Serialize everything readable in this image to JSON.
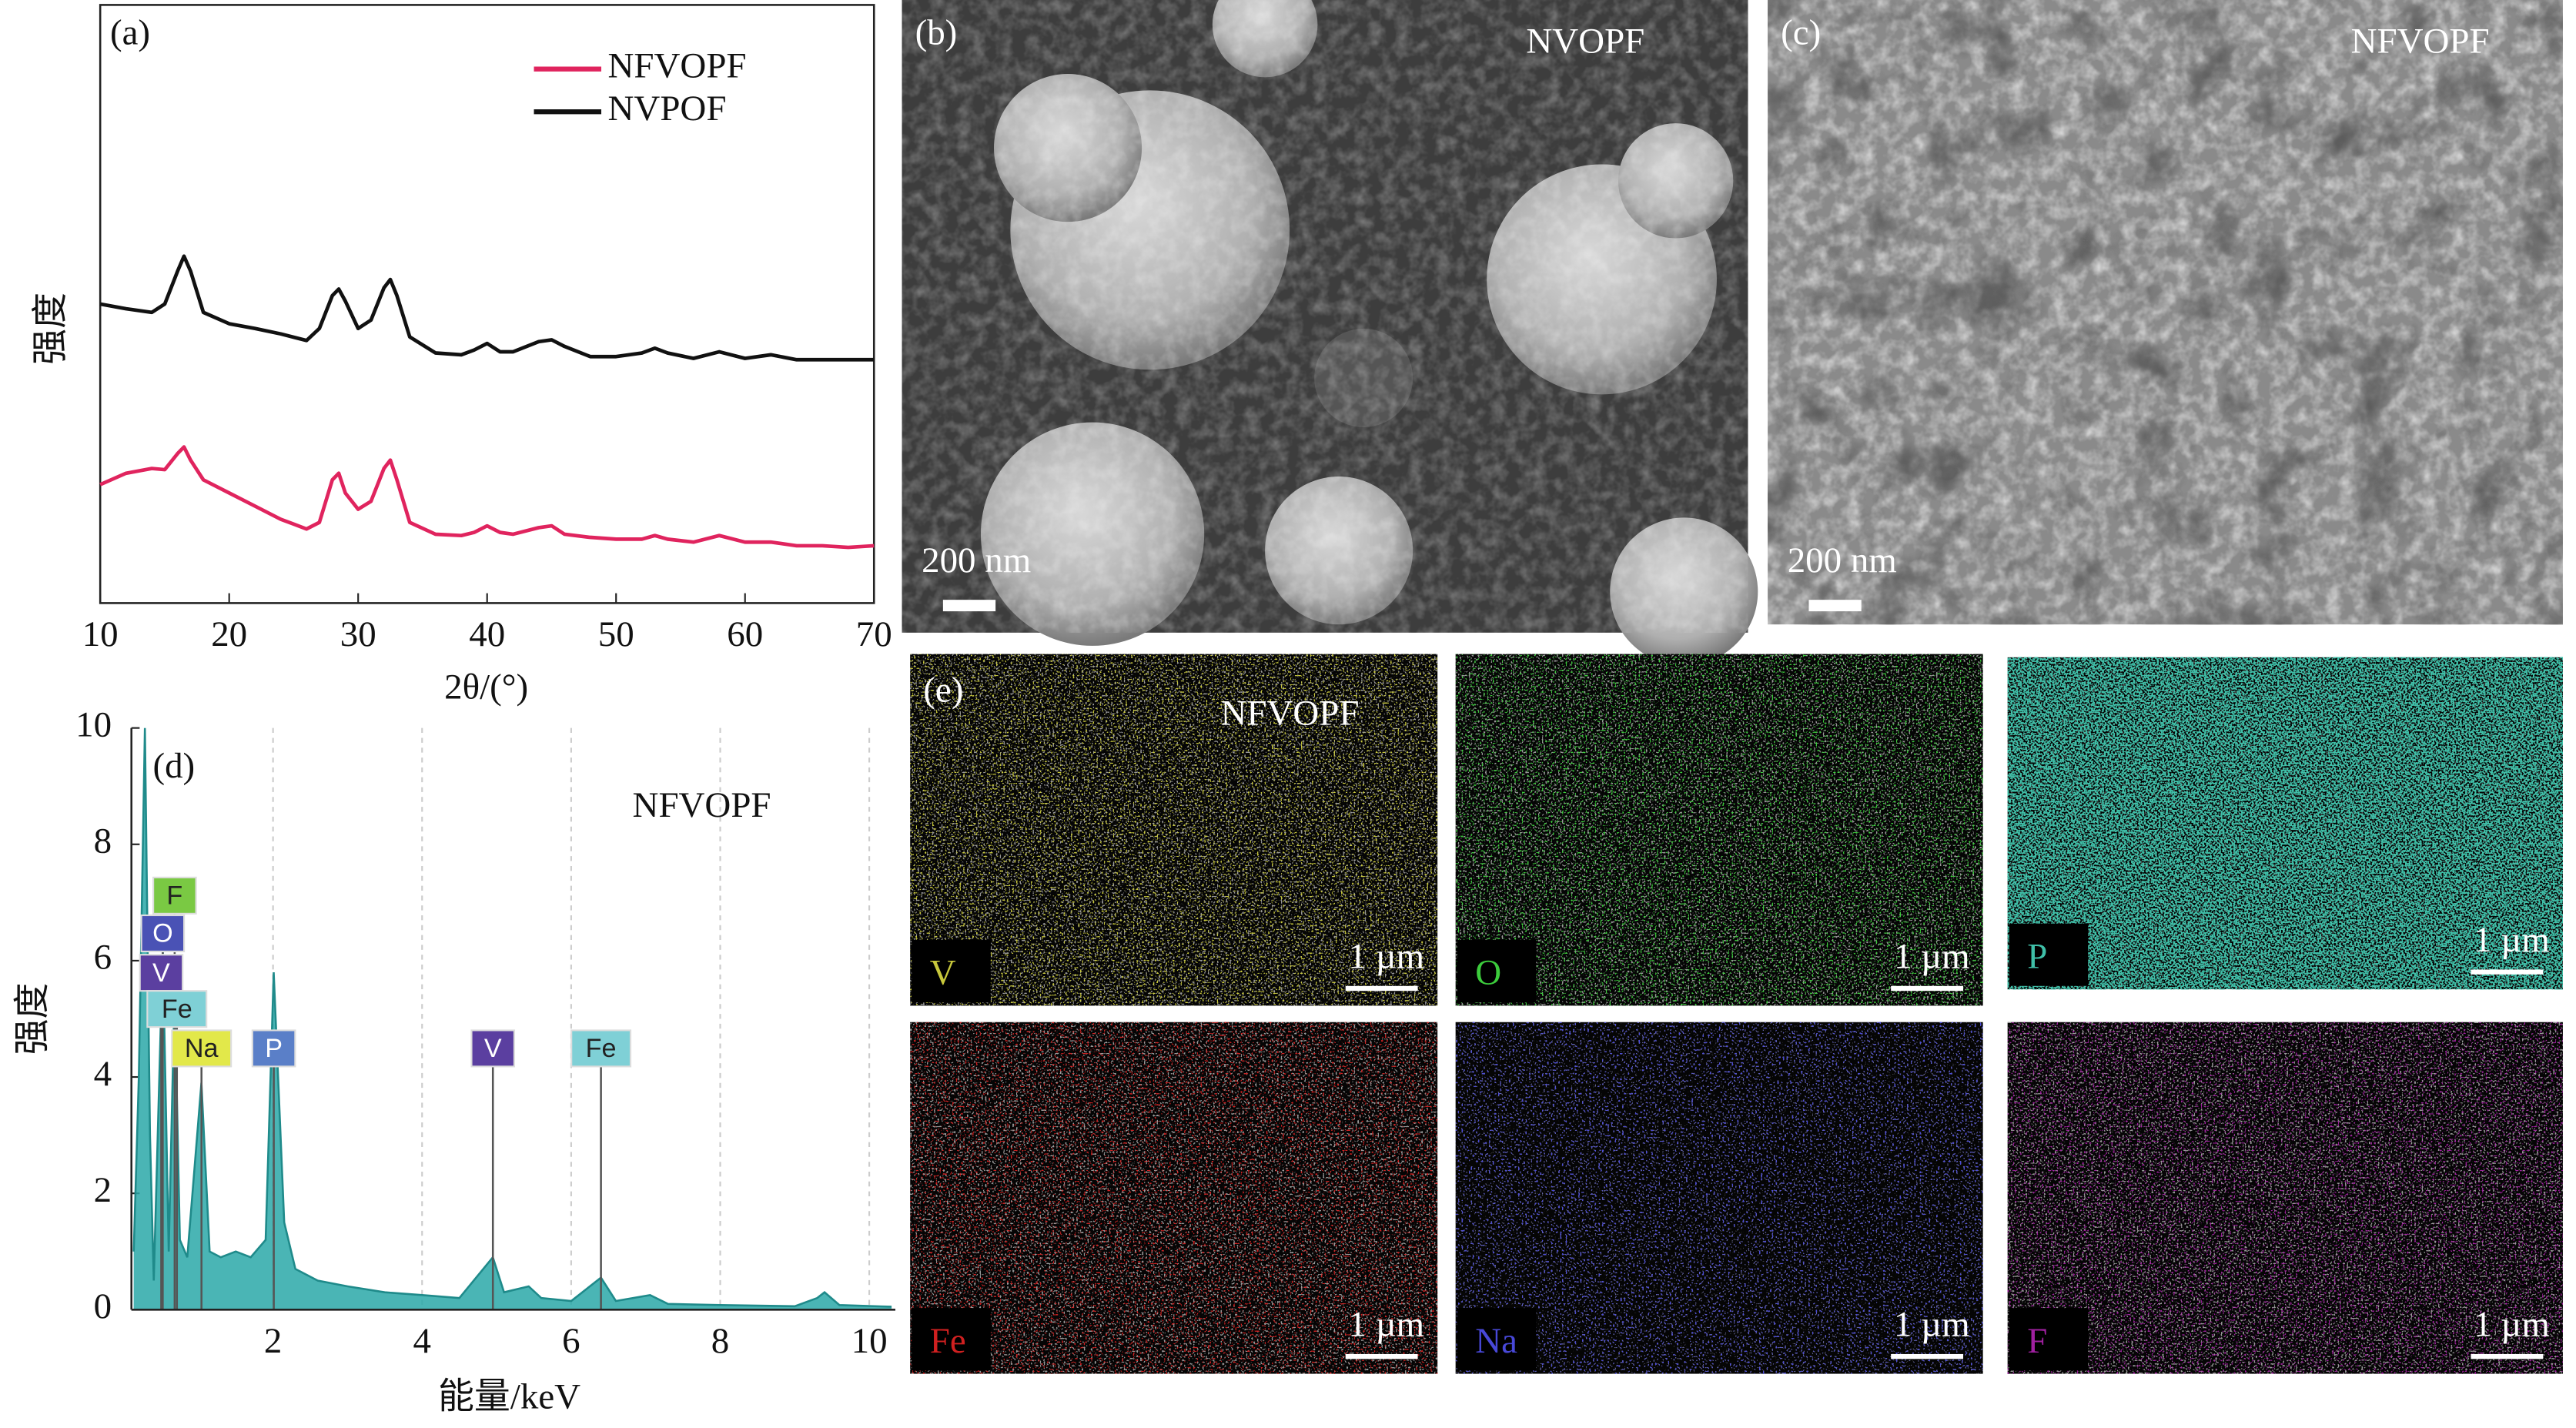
{
  "chart_data": [
    {
      "type": "line",
      "panel_label": "(a)",
      "x_label": "2θ/(°)",
      "y_label": "强度",
      "x": [
        10,
        12,
        14,
        15,
        16,
        16.5,
        17,
        18,
        20,
        22,
        24,
        26,
        27,
        28,
        28.5,
        29,
        30,
        31,
        32,
        32.5,
        33,
        34,
        36,
        38,
        39,
        40,
        41,
        42,
        44,
        45,
        46,
        48,
        50,
        52,
        53,
        54,
        56,
        58,
        60,
        62,
        64,
        66,
        68,
        70
      ],
      "xlim": [
        10,
        70
      ],
      "xticks": [
        10,
        20,
        30,
        40,
        50,
        60,
        70
      ],
      "ylim": [
        0,
        100
      ],
      "series": [
        {
          "name": "NFVOPF",
          "color": "#e0245e",
          "values": [
            19.8,
            21.7,
            22.5,
            22.3,
            25,
            26.1,
            23.9,
            20.6,
            18.4,
            16.2,
            14,
            12.4,
            13.5,
            20.6,
            21.7,
            18.4,
            15.7,
            17,
            22.5,
            23.9,
            20.6,
            13.5,
            11.5,
            11.3,
            11.8,
            12.9,
            11.8,
            11.5,
            12.6,
            12.9,
            11.5,
            11,
            10.7,
            10.7,
            11.3,
            10.7,
            10.2,
            11.3,
            10.2,
            10.2,
            9.6,
            9.6,
            9.3,
            9.6
          ]
        },
        {
          "name": "NVPOF",
          "color": "#111111",
          "values": [
            50,
            49.2,
            48.6,
            50,
            55.5,
            58,
            55.5,
            48.6,
            46.7,
            45.9,
            45,
            43.9,
            45.9,
            51.4,
            52.5,
            50.5,
            45.9,
            47.3,
            52.7,
            54.1,
            51.4,
            44.5,
            41.8,
            41.5,
            42.3,
            43.4,
            42,
            42,
            43.7,
            44,
            42.9,
            41.2,
            41.2,
            41.8,
            42.6,
            41.8,
            40.9,
            42,
            40.9,
            41.5,
            40.7,
            40.7,
            40.7,
            40.7
          ]
        }
      ]
    },
    {
      "type": "area",
      "panel_label": "(d)",
      "annotation": "NFVOPF",
      "x_label": "能量/keV",
      "y_label": "强度",
      "x": [
        0.13,
        0.2,
        0.28,
        0.35,
        0.4,
        0.52,
        0.6,
        0.68,
        0.75,
        0.85,
        1.04,
        1.15,
        1.3,
        1.5,
        1.7,
        1.9,
        2.01,
        2.15,
        2.3,
        2.6,
        3,
        3.5,
        4,
        4.5,
        4.95,
        5.1,
        5.43,
        5.6,
        6,
        6.4,
        6.6,
        7.06,
        7.3,
        8,
        9,
        9.3,
        9.4,
        9.6,
        10.3
      ],
      "values": [
        1,
        4,
        10,
        3,
        0.5,
        6.2,
        1,
        5.5,
        1.2,
        0.9,
        3.9,
        1,
        0.9,
        1,
        0.9,
        1.2,
        5.8,
        1.5,
        0.7,
        0.5,
        0.4,
        0.3,
        0.25,
        0.2,
        0.9,
        0.3,
        0.4,
        0.2,
        0.15,
        0.55,
        0.15,
        0.25,
        0.1,
        0.08,
        0.06,
        0.2,
        0.3,
        0.08,
        0.05
      ],
      "color": "#2aa8a8",
      "xlim": [
        0.1,
        10.35
      ],
      "xticks": [
        2,
        4,
        6,
        8,
        10
      ],
      "ylim": [
        0,
        10
      ],
      "yticks": [
        0,
        2,
        4,
        6,
        8,
        10
      ],
      "grid": true,
      "peak_labels": [
        {
          "text": "F",
          "x": 0.68,
          "color": "#7ac943"
        },
        {
          "text": "O",
          "x": 0.52,
          "color": "#4a52b5"
        },
        {
          "text": "V",
          "x": 0.5,
          "color": "#5b3fa0"
        },
        {
          "text": "Fe",
          "x": 0.71,
          "color": "#7fd0d6"
        },
        {
          "text": "Na",
          "x": 1.04,
          "color": "#e2e84a"
        },
        {
          "text": "P",
          "x": 2.01,
          "color": "#5a7fc8"
        },
        {
          "text": "V",
          "x": 4.95,
          "color": "#5b3fa0"
        },
        {
          "text": "Fe",
          "x": 6.4,
          "color": "#7fd0d6"
        }
      ]
    }
  ],
  "sem_images": [
    {
      "label": "(b)",
      "sample": "NVOPF",
      "scale_bar": "200 nm"
    },
    {
      "label": "(c)",
      "sample": "NFVOPF",
      "scale_bar": "200 nm"
    }
  ],
  "mapping": {
    "label": "(e)",
    "sample": "NFVOPF",
    "tiles": [
      {
        "element": "V",
        "color": "#c8c83c",
        "scale_bar": "1 µm"
      },
      {
        "element": "O",
        "color": "#3ccc3c",
        "scale_bar": "1 µm"
      },
      {
        "element": "P",
        "color": "#3fbfa8",
        "scale_bar": "1 µm"
      },
      {
        "element": "Fe",
        "color": "#d02020",
        "scale_bar": "1 µm"
      },
      {
        "element": "Na",
        "color": "#4848d8",
        "scale_bar": "1 µm"
      },
      {
        "element": "F",
        "color": "#a020a0",
        "scale_bar": "1 µm"
      }
    ]
  }
}
